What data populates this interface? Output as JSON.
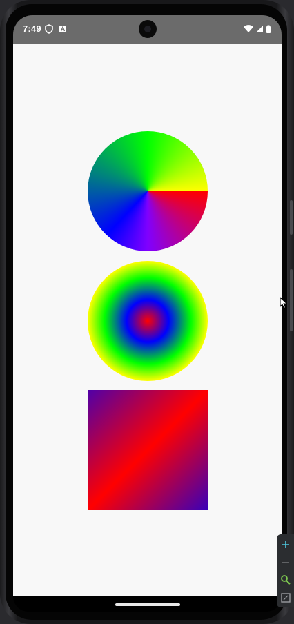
{
  "status_bar": {
    "time": "7:49",
    "left_icons": [
      "shield-icon",
      "a-icon"
    ],
    "right_icons": [
      "wifi-icon",
      "signal-icon",
      "battery-icon"
    ]
  },
  "shapes": [
    {
      "kind": "sweep-gradient-circle",
      "colors": [
        "#ff0000",
        "#8000ff",
        "#0000ff",
        "#008080",
        "#00ff00",
        "#ffff00"
      ]
    },
    {
      "kind": "radial-gradient-circle",
      "colors": [
        "#ff0000",
        "#0000ff",
        "#00ff00",
        "#ffff00"
      ]
    },
    {
      "kind": "linear-gradient-square",
      "colors": [
        "#5000a8",
        "#ff0000",
        "#3a00b8"
      ]
    }
  ],
  "zoom_panel": {
    "icons": [
      "zoom-in-icon",
      "zoom-out-icon",
      "magnifier-icon",
      "fit-screen-icon"
    ],
    "accent": "#4ec9e0"
  },
  "colors": {
    "statusbar": "#6b6b6b",
    "screen_background": "#f8f8f8",
    "frame": "#18181a"
  }
}
